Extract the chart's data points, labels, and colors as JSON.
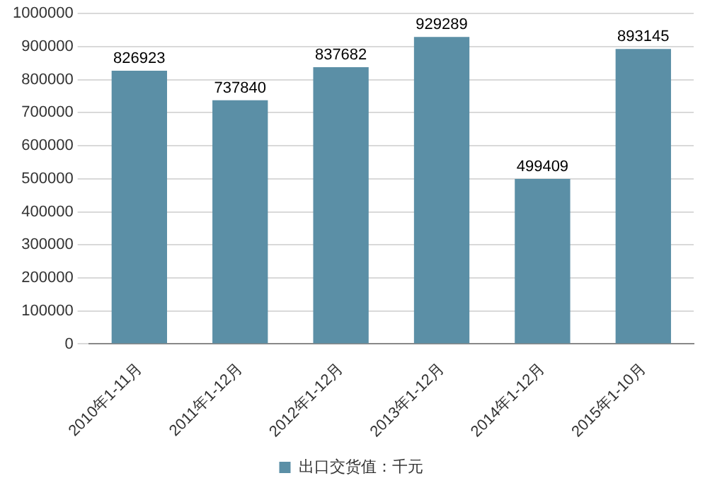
{
  "chart_data": {
    "type": "bar",
    "categories": [
      "2010年1-11月",
      "2011年1-12月",
      "2012年1-12月",
      "2013年1-12月",
      "2014年1-12月",
      "2015年1-10月"
    ],
    "series": [
      {
        "name": "出口交货值：千元",
        "color": "#5b8fa6",
        "values": [
          826923,
          737840,
          837682,
          929289,
          499409,
          893145
        ]
      }
    ],
    "ylim": [
      0,
      1000000
    ],
    "yticks": [
      0,
      100000,
      200000,
      300000,
      400000,
      500000,
      600000,
      700000,
      800000,
      900000,
      1000000
    ],
    "grid": "y",
    "legend": "bottom",
    "data_labels": true
  }
}
